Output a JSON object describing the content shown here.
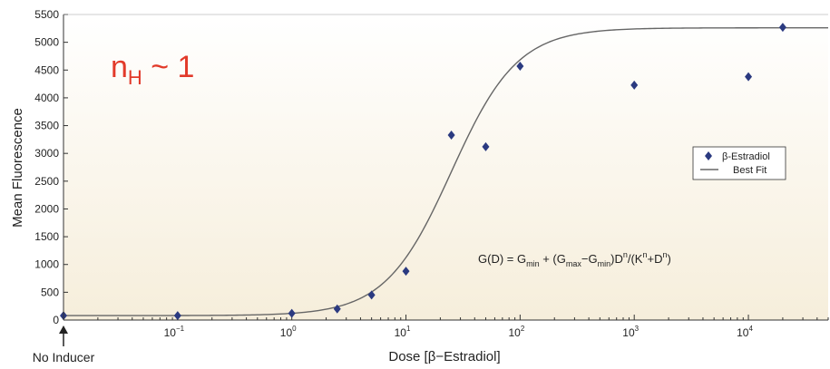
{
  "chart_data": {
    "type": "scatter",
    "x_scale": "log",
    "xlabel": "Dose [β−Estradiol]",
    "ylabel": "Mean Fluorescence",
    "ylim": [
      0,
      5500
    ],
    "xlim": [
      0.01,
      50000
    ],
    "y_ticks": [
      0,
      500,
      1000,
      1500,
      2000,
      2500,
      3000,
      3500,
      4000,
      4500,
      5000,
      5500
    ],
    "y_tick_labels": [
      "0",
      "500",
      "1000",
      "1500",
      "2000",
      "2500",
      "3000",
      "3500",
      "4000",
      "4500",
      "5000",
      "5500"
    ],
    "x_ticks": [
      {
        "value": 0.1,
        "base": "10",
        "exp": "−1"
      },
      {
        "value": 1,
        "base": "10",
        "exp": "0"
      },
      {
        "value": 10,
        "base": "10",
        "exp": "1"
      },
      {
        "value": 100,
        "base": "10",
        "exp": "2"
      },
      {
        "value": 1000,
        "base": "10",
        "exp": "3"
      },
      {
        "value": 10000,
        "base": "10",
        "exp": "4"
      }
    ],
    "no_inducer_label": "No Inducer",
    "annotation_nh": {
      "main": "n",
      "sub": "H",
      "rest": " ~ 1",
      "color": "#e23a2a"
    },
    "formula": {
      "p1": "G(D) = G",
      "s1": "min",
      "p2": " + (G",
      "s2": "max",
      "p3": "−G",
      "s3": "min",
      "p4": ")D",
      "e1": "n",
      "p5": "/(K",
      "e2": "n",
      "p6": "+D",
      "e3": "n",
      "p7": ")"
    },
    "series": [
      {
        "name": "β-Estradiol",
        "marker": "diamond",
        "color": "#2b3a80",
        "points": [
          {
            "x": 0.01,
            "y": 80
          },
          {
            "x": 0.1,
            "y": 80
          },
          {
            "x": 1,
            "y": 120
          },
          {
            "x": 2.5,
            "y": 200
          },
          {
            "x": 5,
            "y": 450
          },
          {
            "x": 10,
            "y": 880
          },
          {
            "x": 25,
            "y": 3330
          },
          {
            "x": 50,
            "y": 3120
          },
          {
            "x": 100,
            "y": 4570
          },
          {
            "x": 1000,
            "y": 4230
          },
          {
            "x": 10000,
            "y": 4380
          },
          {
            "x": 20000,
            "y": 5270
          }
        ]
      },
      {
        "name": "Best Fit",
        "type": "line",
        "color": "#666666",
        "model": {
          "gmin": 80,
          "gmax": 5260,
          "K": 25,
          "n": 1.5
        }
      }
    ]
  }
}
